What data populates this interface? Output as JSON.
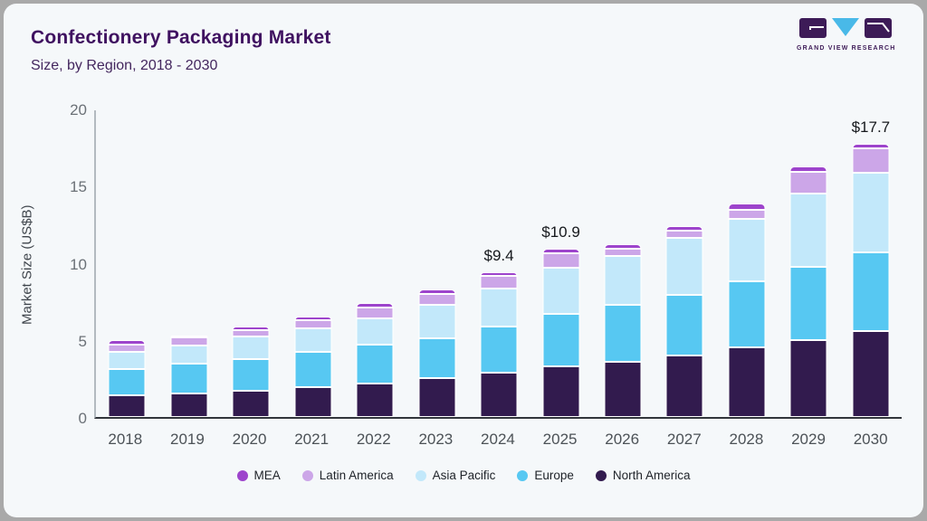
{
  "frame": {
    "outer_bg": "#a9a9a9",
    "card_bg": "#f5f8fa"
  },
  "header": {
    "title": "Confectionery Packaging Market",
    "subtitle": "Size, by Region, 2018 - 2030",
    "logo_text": "GRAND VIEW RESEARCH",
    "logo_purple": "#3d1b57",
    "logo_blue": "#49b9e8"
  },
  "chart_data": {
    "type": "bar",
    "stacked": true,
    "title": "Confectionery Packaging Market Size, by Region, 2018 - 2030",
    "xlabel": "",
    "ylabel": "Market Size (US$B)",
    "ylim": [
      0,
      20
    ],
    "yticks": [
      0,
      5,
      10,
      15,
      20
    ],
    "grid": false,
    "legend_position": "bottom",
    "categories": [
      "2018",
      "2019",
      "2020",
      "2021",
      "2022",
      "2023",
      "2024",
      "2025",
      "2026",
      "2027",
      "2028",
      "2029",
      "2030"
    ],
    "series": [
      {
        "name": "North America",
        "color": "#321b4e",
        "values": [
          1.4,
          1.55,
          1.7,
          1.95,
          2.15,
          2.5,
          2.85,
          3.3,
          3.6,
          4.0,
          4.5,
          5.0,
          5.55
        ]
      },
      {
        "name": "Europe",
        "color": "#57c8f2",
        "values": [
          1.7,
          1.9,
          2.06,
          2.25,
          2.52,
          2.6,
          3.0,
          3.4,
          3.65,
          3.95,
          4.28,
          4.72,
          5.1
        ]
      },
      {
        "name": "Asia Pacific",
        "color": "#c2e8fa",
        "values": [
          1.15,
          1.2,
          1.45,
          1.54,
          1.72,
          2.15,
          2.5,
          3.0,
          3.2,
          3.68,
          4.06,
          4.79,
          5.19
        ]
      },
      {
        "name": "Latin America",
        "color": "#cca6e8",
        "values": [
          0.47,
          0.49,
          0.44,
          0.53,
          0.69,
          0.75,
          0.8,
          0.9,
          0.45,
          0.45,
          0.59,
          1.37,
          1.57
        ]
      },
      {
        "name": "MEA",
        "color": "#9d44cc",
        "values": [
          0.24,
          0.15,
          0.23,
          0.26,
          0.29,
          0.3,
          0.25,
          0.3,
          0.33,
          0.33,
          0.39,
          0.39,
          0.33
        ]
      }
    ],
    "annotations": [
      {
        "category": "2024",
        "label": "$9.4"
      },
      {
        "category": "2025",
        "label": "$10.9"
      },
      {
        "category": "2030",
        "label": "$17.7"
      }
    ],
    "legend": [
      {
        "name": "MEA",
        "color": "#9d44cc"
      },
      {
        "name": "Latin America",
        "color": "#cca6e8"
      },
      {
        "name": "Asia Pacific",
        "color": "#c2e8fa"
      },
      {
        "name": "Europe",
        "color": "#57c8f2"
      },
      {
        "name": "North America",
        "color": "#321b4e"
      }
    ]
  }
}
